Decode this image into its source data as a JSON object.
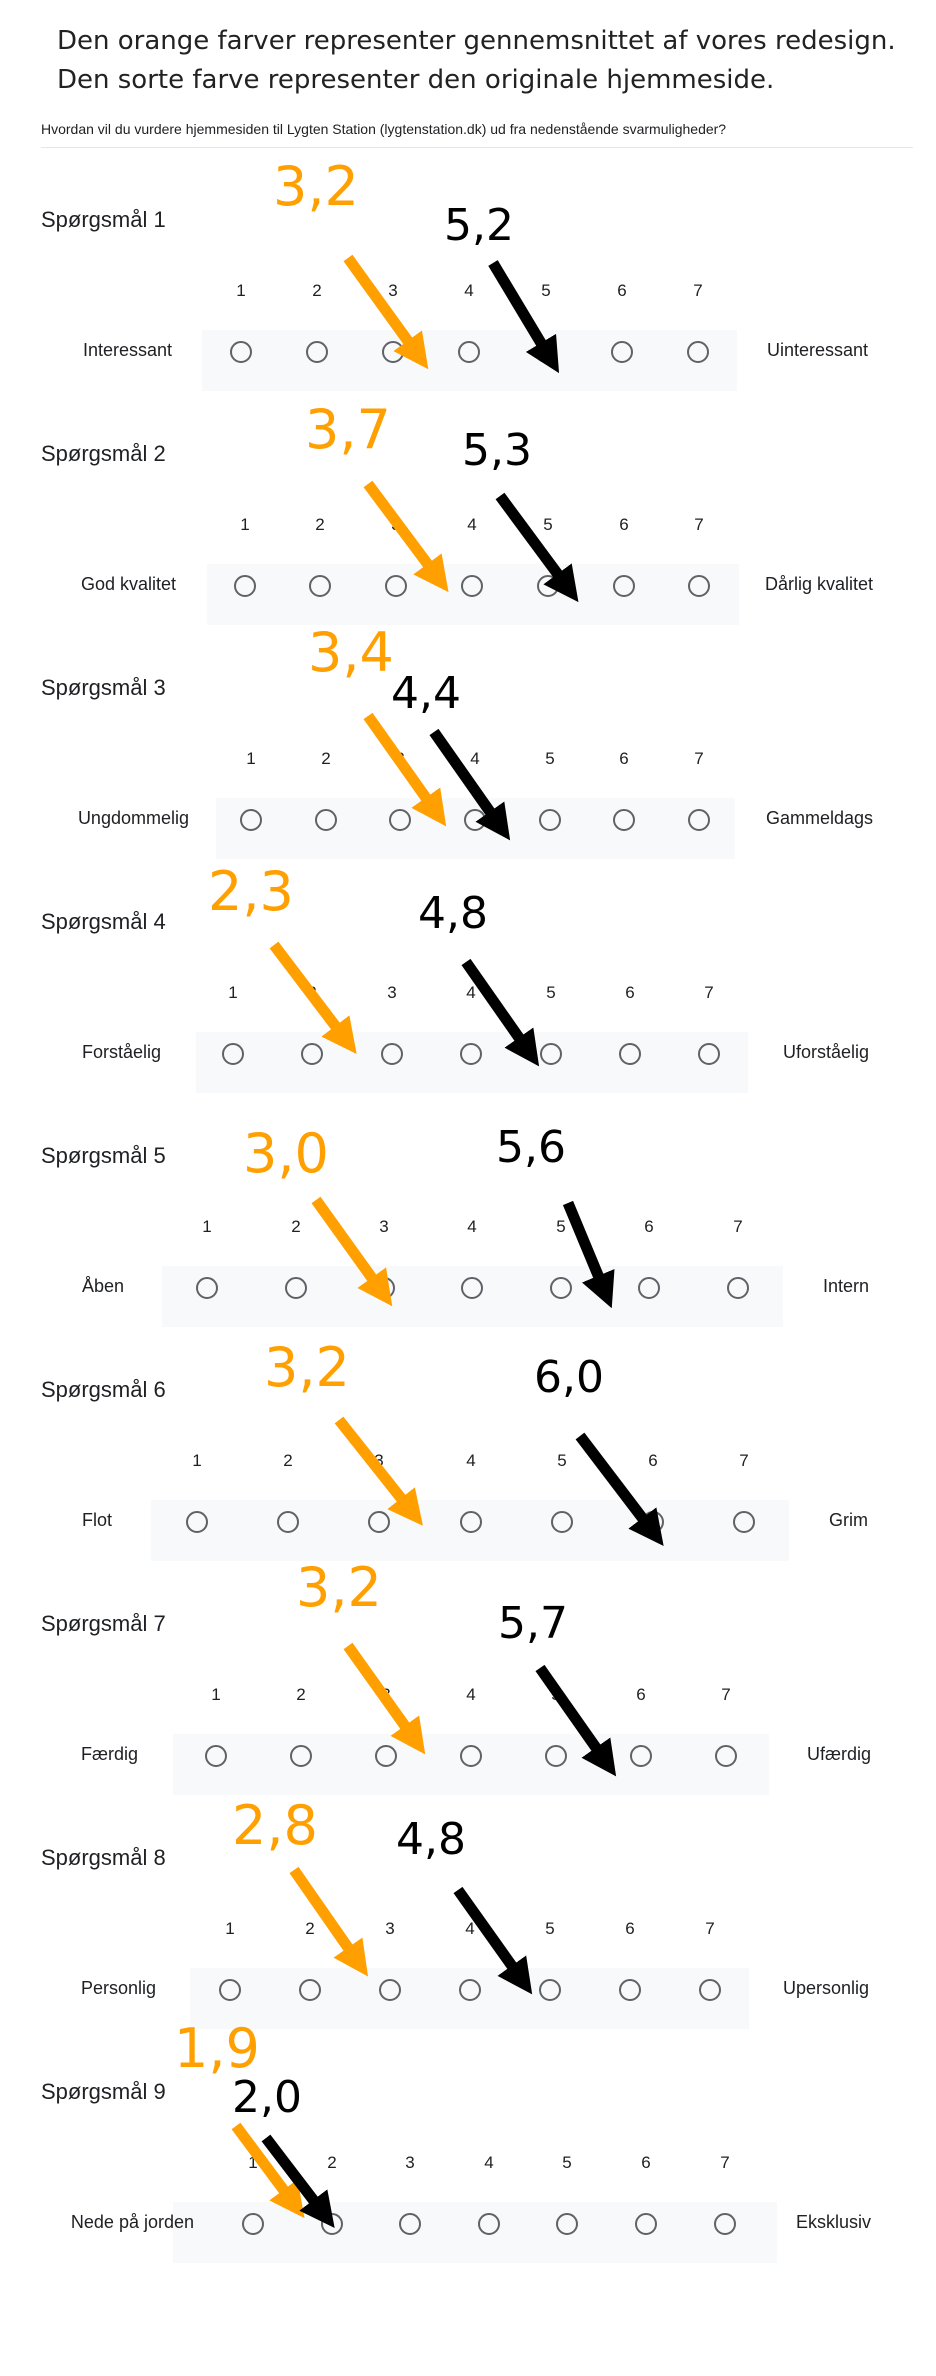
{
  "intro": {
    "line1": "Den orange farver representer gennemsnittet af vores redesign.",
    "line2": "Den sorte farve representer den originale hjemmeside."
  },
  "subtitle": "Hvordan vil du vurdere hjemmesiden til Lygten Station (lygtenstation.dk) ud fra nedenstående svarmuligheder?",
  "scale": [
    "1",
    "2",
    "3",
    "4",
    "5",
    "6",
    "7"
  ],
  "colors": {
    "redesign": "#ff9f00",
    "original": "#000000"
  },
  "questions": [
    {
      "title": "Spørgsmål 1",
      "left": "Interessant",
      "right": "Uinteressant",
      "redesign": "3,2",
      "original": "5,2"
    },
    {
      "title": "Spørgsmål 2",
      "left": "God kvalitet",
      "right": "Dårlig kvalitet",
      "redesign": "3,7",
      "original": "5,3"
    },
    {
      "title": "Spørgsmål 3",
      "left": "Ungdommelig",
      "right": "Gammeldags",
      "redesign": "3,4",
      "original": "4,4"
    },
    {
      "title": "Spørgsmål 4",
      "left": "Forståelig",
      "right": "Uforståelig",
      "redesign": "2,3",
      "original": "4,8"
    },
    {
      "title": "Spørgsmål 5",
      "left": "Åben",
      "right": "Intern",
      "redesign": "3,0",
      "original": "5,6"
    },
    {
      "title": "Spørgsmål 6",
      "left": "Flot",
      "right": "Grim",
      "redesign": "3,2",
      "original": "6,0"
    },
    {
      "title": "Spørgsmål 7",
      "left": "Færdig",
      "right": "Ufærdig",
      "redesign": "3,2",
      "original": "5,7"
    },
    {
      "title": "Spørgsmål 8",
      "left": "Personlig",
      "right": "Upersonlig",
      "redesign": "2,8",
      "original": "4,8"
    },
    {
      "title": "Spørgsmål 9",
      "left": "Nede på jorden",
      "right": "Eksklusiv",
      "redesign": "1,9",
      "original": "2,0"
    }
  ]
}
